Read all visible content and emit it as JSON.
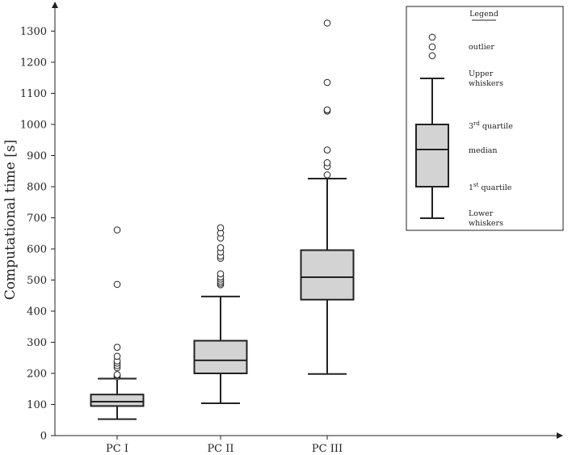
{
  "chart_data": {
    "type": "boxplot",
    "title": "",
    "xlabel": "",
    "ylabel": "Computational time [s]",
    "ylim": [
      0,
      1380
    ],
    "yticks": [
      0,
      100,
      200,
      300,
      400,
      500,
      600,
      700,
      800,
      900,
      1000,
      1100,
      1200,
      1300
    ],
    "grid": false,
    "series": [
      {
        "name": "PC I",
        "whisker_low": 53,
        "q1": 95,
        "median": 109,
        "q3": 132,
        "whisker_high": 183,
        "outliers": [
          189,
          193,
          196,
          218,
          225,
          233,
          240,
          255,
          284,
          486,
          661
        ]
      },
      {
        "name": "PC II",
        "whisker_low": 104,
        "q1": 200,
        "median": 242,
        "q3": 305,
        "whisker_high": 447,
        "outliers": [
          485,
          490,
          496,
          503,
          510,
          520,
          570,
          577,
          590,
          604,
          635,
          651,
          668
        ]
      },
      {
        "name": "PC III",
        "whisker_low": 198,
        "q1": 437,
        "median": 509,
        "q3": 596,
        "whisker_high": 826,
        "outliers": [
          838,
          865,
          877,
          918,
          1043,
          1047,
          1135,
          1326
        ]
      }
    ]
  },
  "legend": {
    "title": "Legend",
    "placement": "top-right",
    "outlier": "outlier",
    "upper_whiskers_line1": "Upper",
    "upper_whiskers_line2": "whiskers",
    "third_quartile_num": "3",
    "third_quartile_sup": "rd",
    "third_quartile_text": " quartile",
    "median": "median",
    "first_quartile_num": "1",
    "first_quartile_sup": "st",
    "first_quartile_text": " quartile",
    "lower_whiskers_line1": "Lower",
    "lower_whiskers_line2": "whiskers"
  },
  "colors": {
    "box_fill": "#d3d3d3",
    "stroke": "#222222"
  }
}
